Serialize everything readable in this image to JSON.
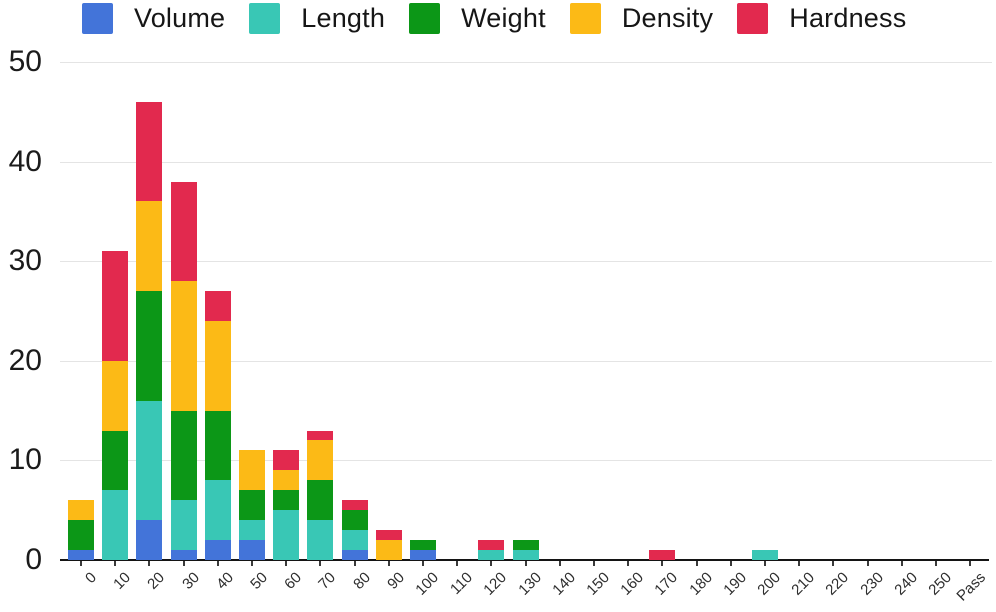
{
  "chart_data": {
    "type": "bar",
    "stacked": true,
    "title": "",
    "xlabel": "",
    "ylabel": "",
    "legend_position": "top",
    "grid": true,
    "ylim": [
      0,
      50
    ],
    "y_ticks": [
      0,
      10,
      20,
      30,
      40,
      50
    ],
    "categories": [
      "0",
      "10",
      "20",
      "30",
      "40",
      "50",
      "60",
      "70",
      "80",
      "90",
      "100",
      "110",
      "120",
      "130",
      "140",
      "150",
      "160",
      "170",
      "180",
      "190",
      "200",
      "210",
      "220",
      "230",
      "240",
      "250",
      "Pass"
    ],
    "series": [
      {
        "name": "Volume",
        "color": "#4374d9",
        "values": [
          1,
          0,
          4,
          1,
          2,
          2,
          0,
          0,
          1,
          0,
          1,
          0,
          0,
          0,
          0,
          0,
          0,
          0,
          0,
          0,
          0,
          0,
          0,
          0,
          0,
          0,
          0
        ]
      },
      {
        "name": "Length",
        "color": "#39c7b5",
        "values": [
          0,
          7,
          12,
          5,
          6,
          2,
          5,
          4,
          2,
          0,
          0,
          0,
          1,
          1,
          0,
          0,
          0,
          0,
          0,
          0,
          1,
          0,
          0,
          0,
          0,
          0,
          0
        ]
      },
      {
        "name": "Weight",
        "color": "#0c9717",
        "values": [
          3,
          6,
          11,
          9,
          7,
          3,
          2,
          4,
          2,
          0,
          1,
          0,
          0,
          1,
          0,
          0,
          0,
          0,
          0,
          0,
          0,
          0,
          0,
          0,
          0,
          0,
          0
        ]
      },
      {
        "name": "Density",
        "color": "#fcba16",
        "values": [
          2,
          7,
          9,
          13,
          9,
          4,
          2,
          4,
          0,
          2,
          0,
          0,
          0,
          0,
          0,
          0,
          0,
          0,
          0,
          0,
          0,
          0,
          0,
          0,
          0,
          0,
          0
        ]
      },
      {
        "name": "Hardness",
        "color": "#e2294e",
        "values": [
          0,
          11,
          10,
          10,
          3,
          0,
          2,
          1,
          1,
          1,
          0,
          0,
          1,
          0,
          0,
          0,
          0,
          1,
          0,
          0,
          0,
          0,
          0,
          0,
          0,
          0,
          0
        ]
      }
    ]
  }
}
